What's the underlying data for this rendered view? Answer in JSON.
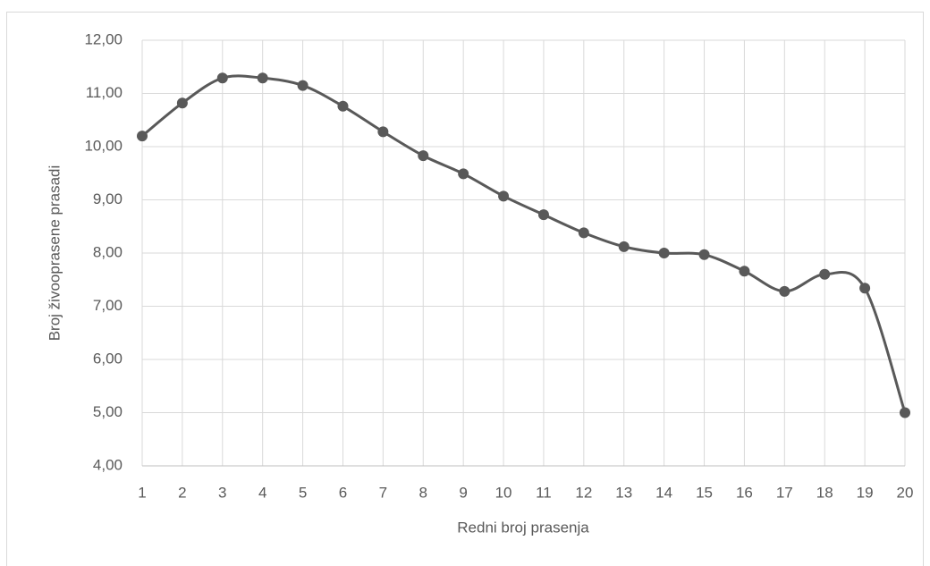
{
  "chart_data": {
    "type": "line",
    "x_label": "Redni broj prasenja",
    "y_label": "Broj živooprasene prasadi",
    "categories": [
      "1",
      "2",
      "3",
      "4",
      "5",
      "6",
      "7",
      "8",
      "9",
      "10",
      "11",
      "12",
      "13",
      "14",
      "15",
      "16",
      "17",
      "18",
      "19",
      "20"
    ],
    "series": [
      {
        "name": "Broj živooprasene prasadi",
        "color": "#595959",
        "values": [
          10.2,
          10.82,
          11.29,
          11.29,
          11.15,
          10.76,
          10.28,
          9.83,
          9.49,
          9.07,
          8.72,
          8.38,
          8.12,
          8.0,
          7.97,
          7.66,
          7.28,
          7.6,
          7.34,
          5.0
        ]
      }
    ],
    "ylim": [
      4,
      12
    ],
    "yticks": [
      {
        "value": 4,
        "label": "4,00"
      },
      {
        "value": 5,
        "label": "5,00"
      },
      {
        "value": 6,
        "label": "6,00"
      },
      {
        "value": 7,
        "label": "7,00"
      },
      {
        "value": 8,
        "label": "8,00"
      },
      {
        "value": 9,
        "label": "9,00"
      },
      {
        "value": 10,
        "label": "10,00"
      },
      {
        "value": 11,
        "label": "11,00"
      },
      {
        "value": 12,
        "label": "12,00"
      }
    ],
    "grid": true,
    "smooth": true
  }
}
